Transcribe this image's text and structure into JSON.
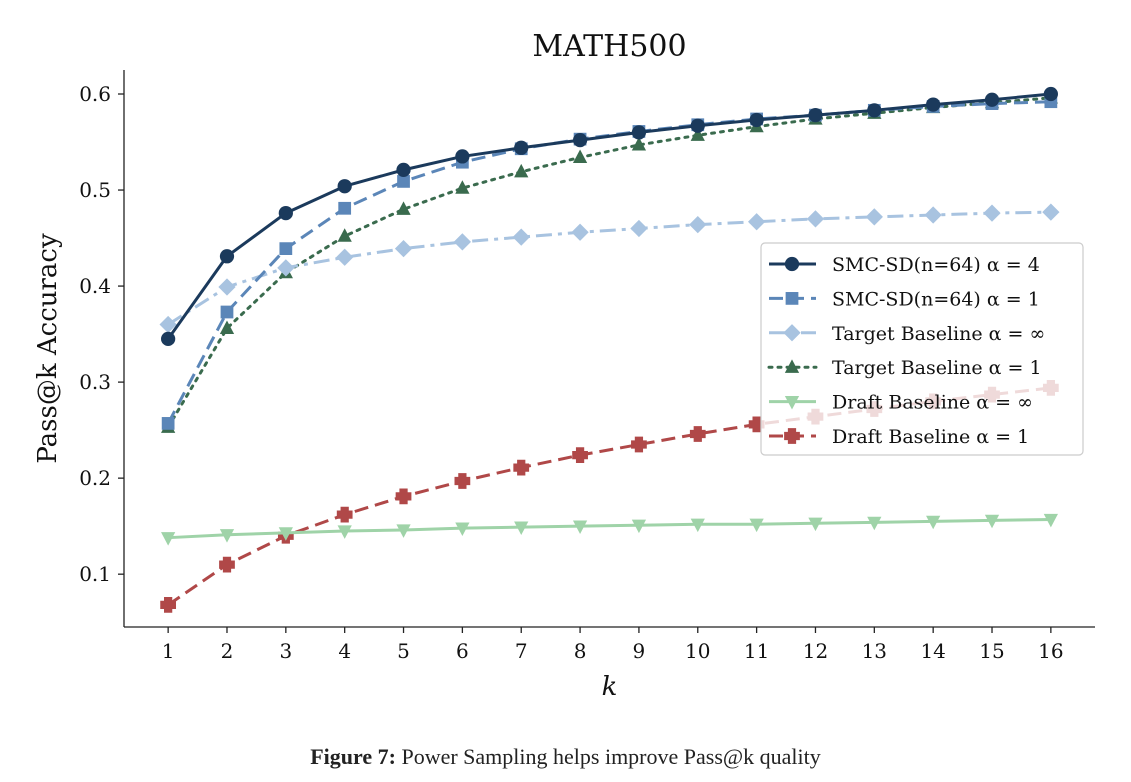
{
  "chart_data": {
    "type": "line",
    "title": "MATH500",
    "xlabel": "k",
    "ylabel": "Pass@k Accuracy",
    "x": [
      1,
      2,
      3,
      4,
      5,
      6,
      7,
      8,
      9,
      10,
      11,
      12,
      13,
      14,
      15,
      16
    ],
    "xlim": [
      0.25,
      16.75
    ],
    "ylim": [
      0.045,
      0.625
    ],
    "yticks": [
      0.1,
      0.2,
      0.3,
      0.4,
      0.5,
      0.6
    ],
    "ytick_labels": [
      "0.1",
      "0.2",
      "0.3",
      "0.4",
      "0.5",
      "0.6"
    ],
    "legend_position": "center-right",
    "series": [
      {
        "name": "SMC-SD(n=64) α = 4",
        "color": "#1b3a5c",
        "marker": "circle",
        "dash": "solid",
        "values": [
          0.345,
          0.431,
          0.476,
          0.504,
          0.521,
          0.535,
          0.544,
          0.552,
          0.56,
          0.567,
          0.573,
          0.578,
          0.583,
          0.589,
          0.594,
          0.6
        ]
      },
      {
        "name": "SMC-SD(n=64) α = 1",
        "color": "#5b86b8",
        "marker": "square",
        "dash": "dashed",
        "values": [
          0.257,
          0.373,
          0.439,
          0.481,
          0.509,
          0.529,
          0.543,
          0.553,
          0.561,
          0.568,
          0.574,
          0.578,
          0.583,
          0.587,
          0.59,
          0.592
        ]
      },
      {
        "name": "Target Baseline α = ∞",
        "color": "#a8c3e0",
        "marker": "diamond",
        "dash": "dashdot",
        "values": [
          0.36,
          0.399,
          0.419,
          0.43,
          0.439,
          0.446,
          0.451,
          0.456,
          0.46,
          0.464,
          0.467,
          0.47,
          0.472,
          0.474,
          0.476,
          0.477
        ]
      },
      {
        "name": "Target Baseline α = 1",
        "color": "#3a6b4e",
        "marker": "triangle-up",
        "dash": "dotted",
        "values": [
          0.253,
          0.356,
          0.414,
          0.452,
          0.48,
          0.502,
          0.519,
          0.534,
          0.547,
          0.557,
          0.566,
          0.574,
          0.58,
          0.586,
          0.591,
          0.596
        ]
      },
      {
        "name": "Draft Baseline α = ∞",
        "color": "#9fd3a8",
        "marker": "triangle-down",
        "dash": "solid",
        "values": [
          0.138,
          0.141,
          0.143,
          0.145,
          0.146,
          0.148,
          0.149,
          0.15,
          0.151,
          0.152,
          0.152,
          0.153,
          0.154,
          0.155,
          0.156,
          0.157
        ]
      },
      {
        "name": "Draft Baseline α = 1",
        "color": "#b04848",
        "marker": "plus",
        "dash": "dashed",
        "values": [
          0.068,
          0.11,
          0.14,
          0.162,
          0.181,
          0.197,
          0.211,
          0.224,
          0.235,
          0.246,
          0.256,
          0.264,
          0.272,
          0.28,
          0.287,
          0.294
        ]
      }
    ]
  },
  "caption": {
    "label": "Figure 7:",
    "text": "Power Sampling helps improve Pass@k quality"
  }
}
